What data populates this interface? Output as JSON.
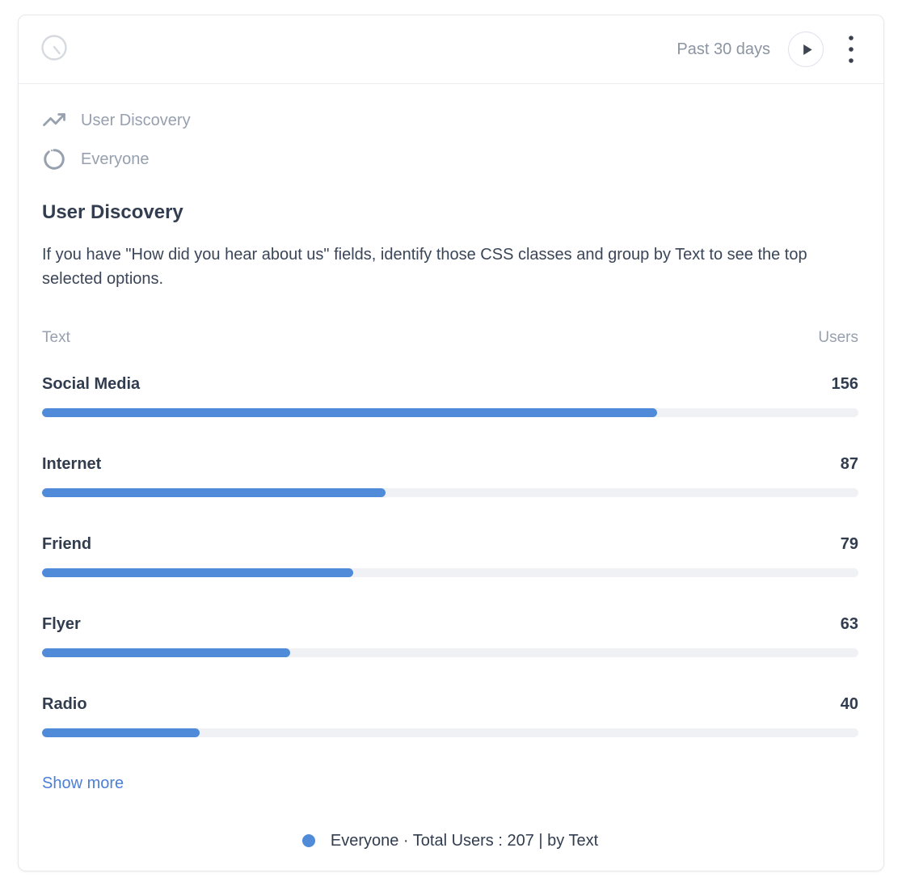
{
  "header": {
    "time_range_label": "Past 30 days"
  },
  "icons": {
    "header_left": "clock-icon",
    "run": "play-icon",
    "menu": "kebab-menu-icon",
    "report": "trend-up-icon",
    "audience": "spinner-icon",
    "legend": "dot-icon"
  },
  "breadcrumbs": {
    "report": "User Discovery",
    "audience": "Everyone"
  },
  "report": {
    "title": "User Discovery",
    "description": "If you have \"How did you hear about us\" fields, identify those CSS classes and group by Text to see the top selected options."
  },
  "table": {
    "left_header": "Text",
    "right_header": "Users"
  },
  "chart_data": {
    "type": "bar",
    "orientation": "horizontal",
    "title": "User Discovery",
    "series_name": "Everyone",
    "group_by": "Text",
    "value_label": "Users",
    "categories": [
      "Social Media",
      "Internet",
      "Friend",
      "Flyer",
      "Radio"
    ],
    "values": [
      156,
      87,
      79,
      63,
      40
    ],
    "total_users": 207,
    "value_axis_max": 207,
    "bar_color": "#4F8BD9",
    "track_color": "#F0F1F4",
    "legend_position": "bottom",
    "grid": false
  },
  "actions": {
    "show_more_label": "Show more"
  },
  "legend": {
    "dot_color": "#4F8BD9",
    "text": "Everyone · Total Users : 207 | by Text"
  },
  "colors": {
    "accent_blue": "#4F8BD9",
    "link_blue": "#4C7FD6",
    "text_dark": "#313D4F",
    "text_gray": "#97A0AE"
  }
}
